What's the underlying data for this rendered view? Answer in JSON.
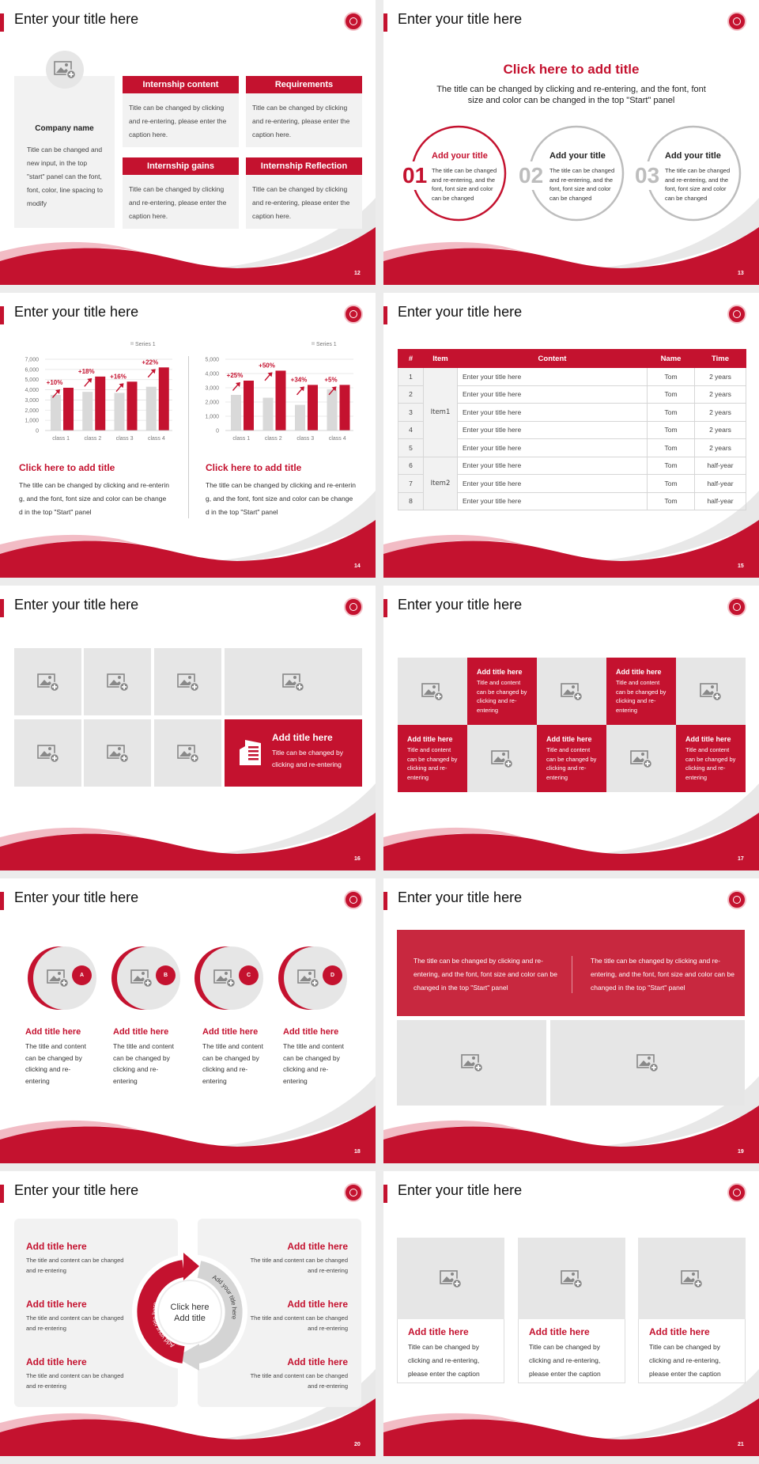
{
  "colors": {
    "brand_red": "#c4122f",
    "soft_red": "#c8283f",
    "tile_gray": "#e6e6e6",
    "panel_gray": "#f2f2f2",
    "series_gray": "#d9d9d9"
  },
  "slides": {
    "s12": {
      "title": "Enter your title here",
      "page": "12",
      "company": {
        "name": "Company name",
        "text": "Title can be changed and new input, in the top \"start\" panel can the font, font, color, line spacing to modify"
      },
      "boxes": [
        {
          "header": "Internship content",
          "body": "Title can be changed by clicking and re-entering, please enter the caption here."
        },
        {
          "header": "Requirements",
          "body": "Title can be changed by clicking and re-entering, please enter the caption here."
        },
        {
          "header": "Internship gains",
          "body": "Title can be changed by clicking and re-entering, please enter the caption here."
        },
        {
          "header": "Internship Reflection",
          "body": "Title can be changed by clicking and re-entering, please enter the caption here."
        }
      ]
    },
    "s13": {
      "title": "Enter your title here",
      "page": "13",
      "heading": "Click here to add title",
      "subtitle": "The title can be changed by clicking and re-entering, and the font, font size and color can be changed in the top \"Start\" panel",
      "items": [
        {
          "num": "01",
          "title": "Add your title",
          "body": "The title can be changed and re-entering, and the font, font size and color can be changed"
        },
        {
          "num": "02",
          "title": "Add your title",
          "body": "The title can be changed and re-entering, and the font, font size and color can be changed"
        },
        {
          "num": "03",
          "title": "Add your title",
          "body": "The title can be changed and re-entering, and the font, font size and color can be changed"
        }
      ]
    },
    "s14": {
      "title": "Enter your title here",
      "page": "14",
      "panels": [
        {
          "title": "Click here to add title",
          "body": "The title can be changed by clicking and re-entering, and the font, font size and color can be changed in the top \"Start\" panel"
        },
        {
          "title": "Click here to add title",
          "body": "The title can be changed by clicking and re-entering, and the font, font size and color can be changed in the top \"Start\" panel"
        }
      ]
    },
    "s15": {
      "title": "Enter your title here",
      "page": "15",
      "headers": [
        "#",
        "Item",
        "Content",
        "Name",
        "Time"
      ],
      "groups": [
        "Item1",
        "Item2"
      ],
      "rows": [
        [
          "1",
          "Enter your title here",
          "Tom",
          "2 years"
        ],
        [
          "2",
          "Enter your title here",
          "Tom",
          "2 years"
        ],
        [
          "3",
          "Enter your title here",
          "Tom",
          "2 years"
        ],
        [
          "4",
          "Enter your title here",
          "Tom",
          "2 years"
        ],
        [
          "5",
          "Enter your title here",
          "Tom",
          "2 years"
        ],
        [
          "6",
          "Enter your title here",
          "Tom",
          "half-year"
        ],
        [
          "7",
          "Enter your title here",
          "Tom",
          "half-year"
        ],
        [
          "8",
          "Enter your title here",
          "Tom",
          "half-year"
        ]
      ]
    },
    "s16": {
      "title": "Enter your title here",
      "page": "16",
      "feature": {
        "title": "Add title here",
        "body": "Title can be changed by clicking and re-entering"
      }
    },
    "s17": {
      "title": "Enter your title here",
      "page": "17",
      "cells": [
        {
          "title": "Add title here",
          "body": "Title and content can be changed by clicking and re-entering"
        },
        {
          "title": "Add title here",
          "body": "Title and content can be changed by clicking and re-entering"
        },
        {
          "title": "Add title here",
          "body": "Title and content can be changed by clicking and re-entering"
        },
        {
          "title": "Add title here",
          "body": "Title and content can be changed by clicking and re-entering"
        },
        {
          "title": "Add title here",
          "body": "Title and content can be changed by clicking and re-entering"
        }
      ]
    },
    "s18": {
      "title": "Enter your title here",
      "page": "18",
      "items": [
        {
          "badge": "A",
          "title": "Add title here",
          "body": "The title and content can be changed by clicking and re-entering"
        },
        {
          "badge": "B",
          "title": "Add title here",
          "body": "The title and content can be changed by clicking and re-entering"
        },
        {
          "badge": "C",
          "title": "Add title here",
          "body": "The title and content can be changed by clicking and re-entering"
        },
        {
          "badge": "D",
          "title": "Add title here",
          "body": "The title and content can be changed by clicking and re-entering"
        }
      ]
    },
    "s19": {
      "title": "Enter your title here",
      "page": "19",
      "texts": [
        "The title can be changed by clicking and re-entering, and the font, font size and color can be changed in the top \"Start\" panel",
        "The title can be changed by clicking and re-entering, and the font, font size and color can be changed in the top \"Start\" panel"
      ]
    },
    "s20": {
      "title": "Enter your title here",
      "page": "20",
      "left": [
        {
          "title": "Add title here",
          "body": "The title and content can be changed and re-entering"
        },
        {
          "title": "Add title here",
          "body": "The title and content can be changed and re-entering"
        },
        {
          "title": "Add title here",
          "body": "The title and content can be changed and re-entering"
        }
      ],
      "right": [
        {
          "title": "Add title here",
          "body": "The title and content can be changed and re-entering"
        },
        {
          "title": "Add title here",
          "body": "The title and content can be changed and re-entering"
        },
        {
          "title": "Add title here",
          "body": "The title and content can be changed and re-entering"
        }
      ],
      "center": {
        "line1": "Click here",
        "line2": "Add title"
      },
      "arc_left": "Add your title here",
      "arc_right": "Add your title here"
    },
    "s21": {
      "title": "Enter your title here",
      "page": "21",
      "cards": [
        {
          "title": "Add title here",
          "body": "Title can be changed by clicking and re-entering, please enter the caption"
        },
        {
          "title": "Add title here",
          "body": "Title can be changed by clicking and re-entering, please enter the caption"
        },
        {
          "title": "Add title here",
          "body": "Title can be changed by clicking and re-entering, please enter the caption"
        }
      ]
    }
  },
  "chart_data": [
    {
      "type": "bar",
      "categories": [
        "class 1",
        "class 2",
        "class 3",
        "class 4"
      ],
      "series": [
        {
          "name": "Series 1",
          "values": [
            3500,
            3800,
            3700,
            4300
          ],
          "color": "#d9d9d9"
        },
        {
          "values": [
            4200,
            5300,
            4800,
            6200
          ],
          "color": "#c4122f"
        }
      ],
      "annotations": [
        "+10%",
        "+18%",
        "+16%",
        "+22%"
      ],
      "ylim": [
        0,
        7000
      ],
      "yticks": [
        0,
        1000,
        2000,
        3000,
        4000,
        5000,
        6000,
        7000
      ],
      "legend": "top-right",
      "grid": true
    },
    {
      "type": "bar",
      "categories": [
        "class 1",
        "class 2",
        "class 3",
        "class 4"
      ],
      "series": [
        {
          "name": "Series 1",
          "values": [
            2500,
            2300,
            1800,
            2900
          ],
          "color": "#d9d9d9"
        },
        {
          "values": [
            3500,
            4200,
            3200,
            3200
          ],
          "color": "#c4122f"
        }
      ],
      "annotations": [
        "+25%",
        "+50%",
        "+34%",
        "+5%"
      ],
      "ylim": [
        0,
        5000
      ],
      "yticks": [
        0,
        1000,
        2000,
        3000,
        4000,
        5000
      ],
      "legend": "top-right",
      "grid": true
    }
  ]
}
